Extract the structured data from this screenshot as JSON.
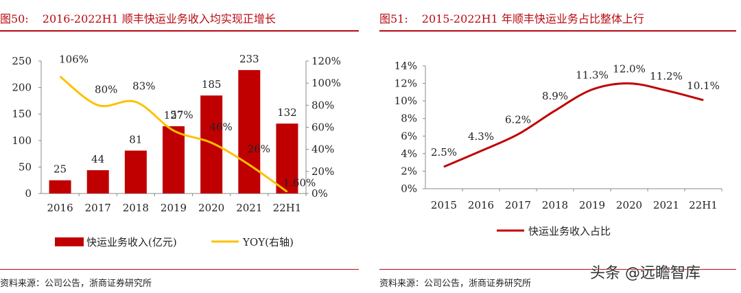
{
  "figure_left": {
    "number": "图50:",
    "title": "2016-2022H1 顺丰快运业务收入均实现正增长",
    "source": "资料来源：公司公告，浙商证券研究所"
  },
  "figure_right": {
    "number": "图51:",
    "title": "2015-2022H1 年顺丰快运业务占比整体上行",
    "source": "资料来源：公司公告，浙商证券研究所"
  },
  "watermark": "头条 @远瞻智库",
  "colors": {
    "bar": "#c00000",
    "yoy_line": "#ffc000",
    "share_line": "#c00000",
    "accent": "#b80a11"
  },
  "chart_data": [
    {
      "type": "bar",
      "categories": [
        "2016",
        "2017",
        "2018",
        "2019",
        "2020",
        "2021",
        "22H1"
      ],
      "series": [
        {
          "name": "快运业务收入(亿元)",
          "kind": "bar",
          "axis": "left",
          "values": [
            25,
            44,
            81,
            127,
            185,
            233,
            132
          ],
          "labels": [
            "25",
            "44",
            "81",
            "127",
            "185",
            "233",
            "132"
          ]
        },
        {
          "name": "YOY(右轴)",
          "kind": "line",
          "axis": "right",
          "values": [
            106,
            80,
            83,
            57,
            46,
            26,
            1.6
          ],
          "labels": [
            "106%",
            "80%",
            "83%",
            "57%",
            "46%",
            "26%",
            "1.60%"
          ]
        }
      ],
      "ylim_left": [
        0,
        250
      ],
      "yticks_left": [
        "0",
        "50",
        "100",
        "150",
        "200",
        "250"
      ],
      "ylim_right": [
        0,
        120
      ],
      "yticks_right": [
        "0%",
        "20%",
        "40%",
        "60%",
        "80%",
        "100%",
        "120%"
      ],
      "legend": [
        "快运业务收入(亿元)",
        "YOY(右轴)"
      ],
      "legend_position": "bottom"
    },
    {
      "type": "line",
      "categories": [
        "2015",
        "2016",
        "2017",
        "2018",
        "2019",
        "2020",
        "2021",
        "22H1"
      ],
      "series": [
        {
          "name": "快运业务收入占比",
          "values": [
            2.5,
            4.3,
            6.2,
            8.9,
            11.3,
            12.0,
            11.2,
            10.1
          ],
          "labels": [
            "2.5%",
            "4.3%",
            "6.2%",
            "8.9%",
            "11.3%",
            "12.0%",
            "11.2%",
            "10.1%"
          ]
        }
      ],
      "ylim": [
        0,
        14
      ],
      "yticks": [
        "0%",
        "2%",
        "4%",
        "6%",
        "8%",
        "10%",
        "12%",
        "14%"
      ],
      "legend": [
        "快运业务收入占比"
      ],
      "legend_position": "bottom"
    }
  ]
}
